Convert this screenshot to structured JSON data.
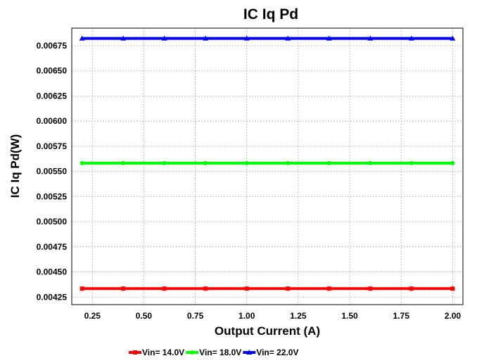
{
  "chart_data": {
    "type": "line",
    "title": "IC Iq Pd",
    "xlabel": "Output Current (A)",
    "ylabel": "IC Iq Pd(W)",
    "x": [
      0.2,
      0.4,
      0.6,
      0.8,
      1.0,
      1.2,
      1.4,
      1.6,
      1.8,
      2.0
    ],
    "xlim": [
      0.15,
      2.05
    ],
    "ylim": [
      0.004175,
      0.006925
    ],
    "x_ticks": [
      0.25,
      0.5,
      0.75,
      1.0,
      1.25,
      1.5,
      1.75,
      2.0
    ],
    "x_tick_labels": [
      "0.25",
      "0.50",
      "0.75",
      "1.00",
      "1.25",
      "1.50",
      "1.75",
      "2.00"
    ],
    "y_ticks": [
      0.00425,
      0.0045,
      0.00475,
      0.005,
      0.00525,
      0.0055,
      0.00575,
      0.006,
      0.00625,
      0.0065,
      0.00675
    ],
    "y_tick_labels": [
      "0.00425",
      "0.00450",
      "0.00475",
      "0.00500",
      "0.00525",
      "0.00550",
      "0.00575",
      "0.00600",
      "0.00625",
      "0.00650",
      "0.00675"
    ],
    "grid": true,
    "legend_position": "bottom",
    "series": [
      {
        "name": "Vin= 14.0V",
        "color": "#ff0000",
        "marker": "square",
        "values": [
          0.004334,
          0.004334,
          0.004334,
          0.004334,
          0.004334,
          0.004334,
          0.004334,
          0.004334,
          0.004334,
          0.004334
        ]
      },
      {
        "name": "Vin= 18.0V",
        "color": "#00ff00",
        "marker": "circle",
        "values": [
          0.005582,
          0.005582,
          0.005582,
          0.005582,
          0.005582,
          0.005582,
          0.005582,
          0.005582,
          0.005582,
          0.005582
        ]
      },
      {
        "name": "Vin= 22.0V",
        "color": "#0000ff",
        "marker": "triangle",
        "values": [
          0.006823,
          0.006823,
          0.006823,
          0.006823,
          0.006823,
          0.006823,
          0.006823,
          0.006823,
          0.006823,
          0.006823
        ]
      }
    ]
  }
}
